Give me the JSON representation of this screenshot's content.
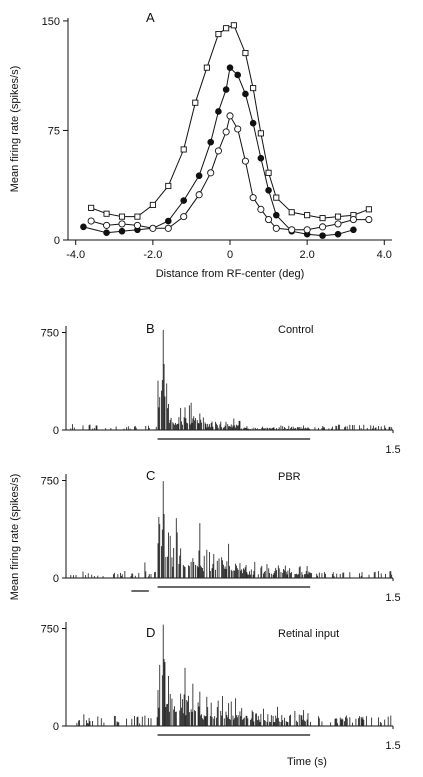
{
  "chart_data": [
    {
      "panel": "A",
      "type": "line",
      "xlabel": "Distance from RF-center (deg)",
      "ylabel": "Mean firing rate (spikes/s)",
      "xlim": [
        -4.2,
        4.2
      ],
      "ylim": [
        0,
        152
      ],
      "xticks": [
        "-4.0",
        "-2.0",
        "0",
        "2.0",
        "4.0"
      ],
      "yticks": [
        "0",
        "75",
        "150"
      ],
      "series": [
        {
          "marker": "open-square",
          "points": [
            [
              -3.6,
              22
            ],
            [
              -3.2,
              18
            ],
            [
              -2.8,
              16
            ],
            [
              -2.4,
              16
            ],
            [
              -2.0,
              24
            ],
            [
              -1.6,
              37
            ],
            [
              -1.2,
              62
            ],
            [
              -0.9,
              94
            ],
            [
              -0.6,
              118
            ],
            [
              -0.3,
              141
            ],
            [
              -0.1,
              145
            ],
            [
              0.1,
              147
            ],
            [
              0.4,
              128
            ],
            [
              0.6,
              104
            ],
            [
              0.8,
              73
            ],
            [
              1.0,
              46
            ],
            [
              1.2,
              29
            ],
            [
              1.6,
              19
            ],
            [
              2.0,
              17
            ],
            [
              2.4,
              15
            ],
            [
              2.8,
              16
            ],
            [
              3.2,
              17
            ],
            [
              3.6,
              21
            ]
          ]
        },
        {
          "marker": "filled-circle",
          "points": [
            [
              -3.8,
              9
            ],
            [
              -3.2,
              5
            ],
            [
              -2.8,
              6
            ],
            [
              -2.4,
              7
            ],
            [
              -2.0,
              8
            ],
            [
              -1.6,
              13
            ],
            [
              -1.2,
              27
            ],
            [
              -0.8,
              44
            ],
            [
              -0.5,
              67
            ],
            [
              -0.3,
              88
            ],
            [
              -0.1,
              103
            ],
            [
              0.0,
              118
            ],
            [
              0.2,
              113
            ],
            [
              0.4,
              100
            ],
            [
              0.6,
              80
            ],
            [
              0.8,
              56
            ],
            [
              1.0,
              34
            ],
            [
              1.2,
              17
            ],
            [
              1.6,
              6
            ],
            [
              2.0,
              4
            ],
            [
              2.4,
              3
            ],
            [
              2.8,
              4
            ],
            [
              3.2,
              7
            ]
          ]
        },
        {
          "marker": "open-circle",
          "points": [
            [
              -3.6,
              13
            ],
            [
              -3.2,
              10
            ],
            [
              -2.8,
              11
            ],
            [
              -2.4,
              10
            ],
            [
              -2.0,
              8
            ],
            [
              -1.6,
              8
            ],
            [
              -1.2,
              16
            ],
            [
              -0.8,
              31
            ],
            [
              -0.5,
              46
            ],
            [
              -0.3,
              61
            ],
            [
              -0.1,
              74
            ],
            [
              0.0,
              85
            ],
            [
              0.2,
              76
            ],
            [
              0.4,
              54
            ],
            [
              0.6,
              29
            ],
            [
              0.8,
              21
            ],
            [
              1.0,
              14
            ],
            [
              1.2,
              8
            ],
            [
              1.6,
              7
            ],
            [
              2.0,
              7
            ],
            [
              2.4,
              9
            ],
            [
              2.8,
              11
            ],
            [
              3.2,
              14
            ],
            [
              3.6,
              14
            ]
          ]
        }
      ]
    },
    {
      "panel": "B",
      "type": "bar",
      "label": "Control",
      "xlim": [
        0,
        1.5
      ],
      "ylim": [
        0,
        800
      ],
      "xticks": [
        "1.5"
      ],
      "yticks": [
        "0",
        "750"
      ],
      "stimulus_bars": [
        [
          0.42,
          1.12
        ]
      ],
      "profile": {
        "seed": 11,
        "baseline": 24,
        "peak_time": 0.444,
        "peak_value": 770,
        "response": [
          [
            0.42,
            0.47,
            540
          ],
          [
            0.47,
            0.62,
            160
          ],
          [
            0.62,
            0.8,
            70
          ],
          [
            0.8,
            1.12,
            25
          ]
        ],
        "sparse": [
          [
            0.03,
            45
          ],
          [
            0.11,
            55
          ],
          [
            0.19,
            30
          ],
          [
            0.27,
            35
          ],
          [
            0.33,
            28
          ],
          [
            0.37,
            40
          ],
          [
            1.06,
            22
          ],
          [
            1.3,
            40
          ],
          [
            1.46,
            35
          ]
        ]
      }
    },
    {
      "panel": "C",
      "type": "bar",
      "label": "PBR",
      "xlim": [
        0,
        1.5
      ],
      "ylim": [
        0,
        800
      ],
      "xticks": [
        "1.5"
      ],
      "yticks": [
        "0",
        "750"
      ],
      "stimulus_bars": [
        [
          0.3,
          0.38
        ],
        [
          0.42,
          1.12
        ]
      ],
      "profile": {
        "seed": 23,
        "baseline": 30,
        "peak_time": 0.444,
        "peak_value": 745,
        "response": [
          [
            0.42,
            0.47,
            560
          ],
          [
            0.47,
            0.62,
            330
          ],
          [
            0.62,
            0.8,
            210
          ],
          [
            0.8,
            1.12,
            100
          ]
        ],
        "sparse": [
          [
            0.13,
            65
          ],
          [
            0.22,
            40
          ],
          [
            0.31,
            50
          ],
          [
            0.36,
            120
          ],
          [
            1.12,
            40
          ],
          [
            1.45,
            42
          ]
        ]
      }
    },
    {
      "panel": "D",
      "type": "bar",
      "label": "Retinal input",
      "xlim": [
        0,
        1.5
      ],
      "ylim": [
        0,
        800
      ],
      "xticks": [
        "1.5"
      ],
      "yticks": [
        "0",
        "750"
      ],
      "xlabel": "Time (s)",
      "stimulus_bars": [
        [
          0.42,
          1.12
        ]
      ],
      "profile": {
        "seed": 37,
        "baseline": 45,
        "peak_time": 0.444,
        "peak_value": 780,
        "response": [
          [
            0.42,
            0.47,
            560
          ],
          [
            0.47,
            0.62,
            320
          ],
          [
            0.62,
            0.8,
            190
          ],
          [
            0.8,
            1.12,
            120
          ]
        ],
        "sparse": [
          [
            0.08,
            90
          ],
          [
            0.16,
            60
          ],
          [
            0.3,
            55
          ],
          [
            0.37,
            80
          ],
          [
            1.26,
            50
          ],
          [
            1.4,
            65
          ]
        ]
      }
    }
  ],
  "shared": {
    "ylabel_histograms": "Mean firing rate (spikes/s)"
  }
}
